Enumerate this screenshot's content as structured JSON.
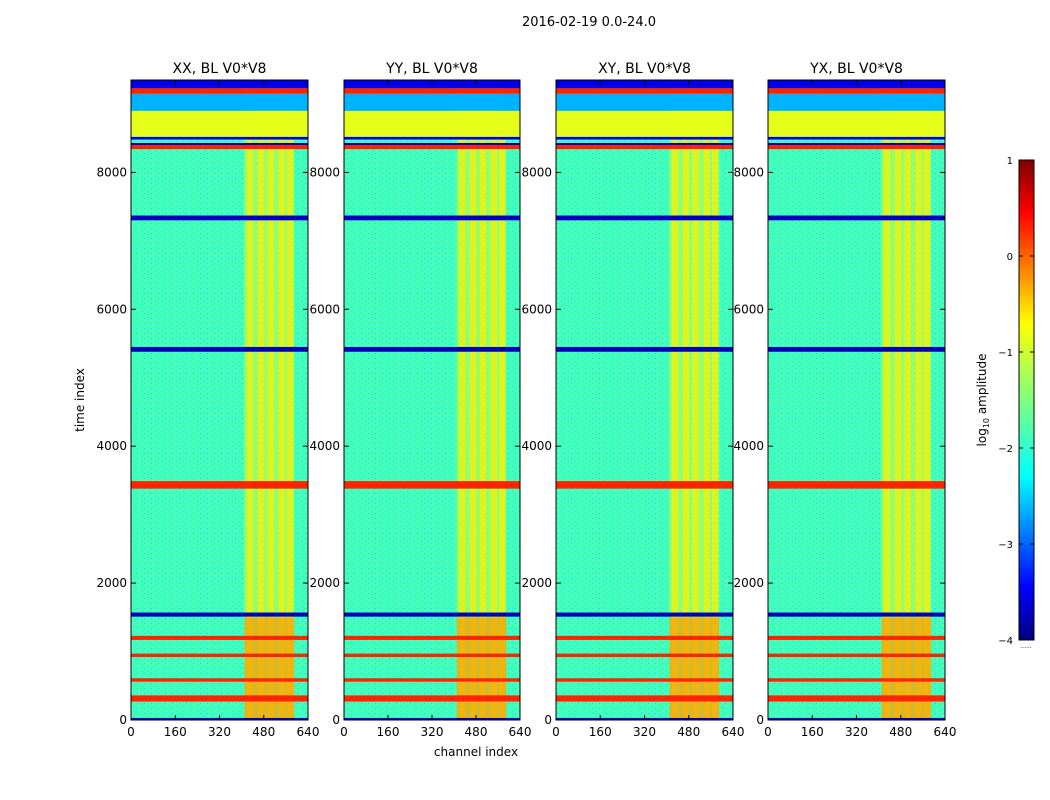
{
  "figure": {
    "title": "2016-02-19 0.0-24.0",
    "xlabel": "channel index",
    "ylabel": "time index",
    "colorbar_label": "log",
    "colorbar_label_sub": "10",
    "colorbar_label_tail": " amplitude",
    "colorbar_footer": "......"
  },
  "chart_data": {
    "type": "heatmap",
    "colormap": "jet",
    "panels": [
      {
        "title": "XX, BL V0*V8"
      },
      {
        "title": "YY, BL V0*V8"
      },
      {
        "title": "XY, BL V0*V8"
      },
      {
        "title": "YX, BL V0*V8"
      }
    ],
    "xlim": [
      0,
      640
    ],
    "ylim": [
      0,
      9350
    ],
    "x_ticks": [
      0,
      160,
      320,
      480,
      640
    ],
    "x_tick_labels": [
      "0",
      "160",
      "320",
      "480",
      "640"
    ],
    "y_ticks": [
      0,
      2000,
      4000,
      6000,
      8000
    ],
    "y_tick_labels": [
      "0",
      "2000",
      "4000",
      "6000",
      "8000"
    ],
    "color_range": [
      -4,
      1
    ],
    "colorbar_ticks": [
      1,
      0,
      -1,
      -2,
      -3,
      -4
    ],
    "colorbar_tick_labels": [
      "1",
      "0",
      "−1",
      "−2",
      "−3",
      "−4"
    ],
    "background_level": -1.8,
    "rfi_channel_range": [
      410,
      590
    ],
    "time_bands": [
      {
        "start": 0,
        "end": 30,
        "level": -3.5
      },
      {
        "start": 270,
        "end": 360,
        "level": 0.2
      },
      {
        "start": 560,
        "end": 610,
        "level": 0.2
      },
      {
        "start": 920,
        "end": 970,
        "level": 0.2
      },
      {
        "start": 1170,
        "end": 1230,
        "level": 0.2
      },
      {
        "start": 1510,
        "end": 1570,
        "level": -3.7
      },
      {
        "start": 3380,
        "end": 3490,
        "level": 0.2
      },
      {
        "start": 5380,
        "end": 5450,
        "level": -3.7
      },
      {
        "start": 7300,
        "end": 7370,
        "level": -3.7
      },
      {
        "start": 8340,
        "end": 8400,
        "level": 0.2
      },
      {
        "start": 8400,
        "end": 8430,
        "level": -3.7
      },
      {
        "start": 8480,
        "end": 8520,
        "level": -3.5
      },
      {
        "start": 8520,
        "end": 8900,
        "level": -1.0
      },
      {
        "start": 8900,
        "end": 9150,
        "level": -2.5
      },
      {
        "start": 9150,
        "end": 9230,
        "level": 0.2
      },
      {
        "start": 9230,
        "end": 9350,
        "level": -3.5
      }
    ]
  }
}
